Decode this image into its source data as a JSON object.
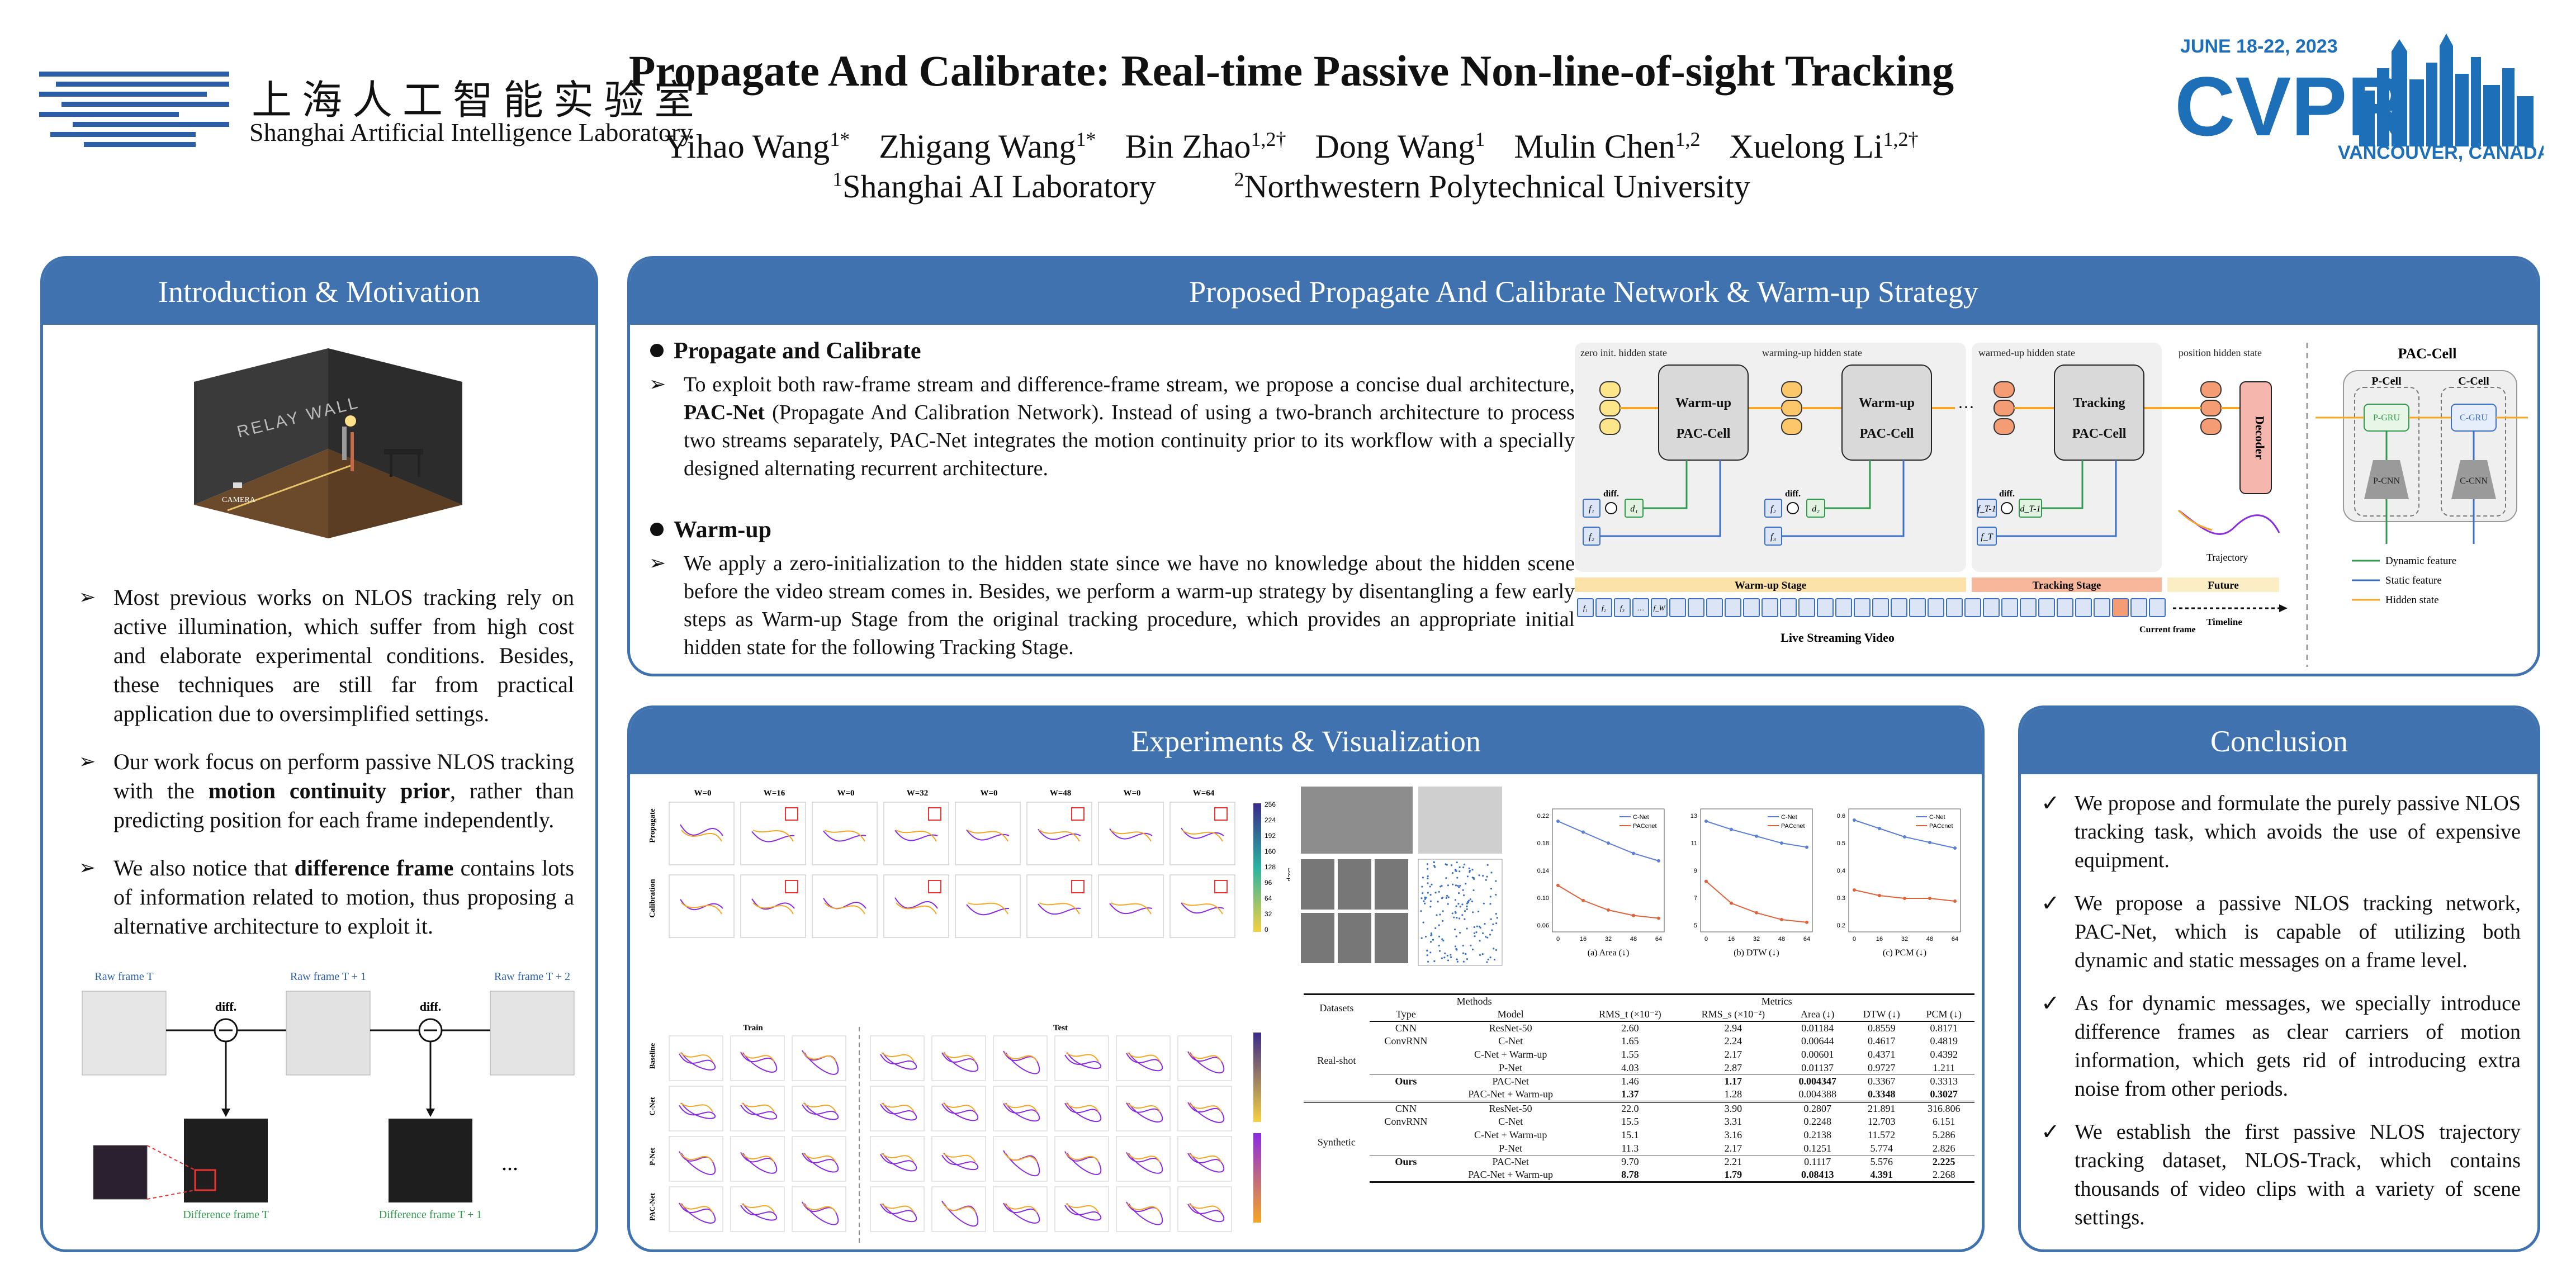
{
  "header": {
    "lab_name_cn": "上海人工智能实验室",
    "lab_name_en": "Shanghai Artificial Intelligence Laboratory",
    "title": "Propagate And Calibrate: Real-time Passive Non-line-of-sight Tracking",
    "authors": [
      {
        "name": "Yihao Wang",
        "sup": "1*"
      },
      {
        "name": "Zhigang Wang",
        "sup": "1*"
      },
      {
        "name": "Bin Zhao",
        "sup": "1,2†"
      },
      {
        "name": "Dong Wang",
        "sup": "1"
      },
      {
        "name": "Mulin Chen",
        "sup": "1,2"
      },
      {
        "name": "Xuelong Li",
        "sup": "1,2†"
      }
    ],
    "affiliations": [
      {
        "sup": "1",
        "name": "Shanghai AI Laboratory"
      },
      {
        "sup": "2",
        "name": "Northwestern Polytechnical University"
      }
    ],
    "cvpr": {
      "dates": "JUNE 18-22, 2023",
      "name": "CVPR",
      "location": "VANCOUVER, CANADA"
    }
  },
  "colors": {
    "panel_blue": "#3f72af",
    "warmup_yellow": "#f5a623",
    "tracking_orange": "#ef8b5c",
    "static_blue": "#3a6fc4",
    "dynamic_green": "#2f9a4b"
  },
  "intro": {
    "title": "Introduction & Motivation",
    "scene_wall_label": "RELAY WALL",
    "scene_camera_label": "CAMERA",
    "bullets": [
      [
        {
          "t": "Most previous works on NLOS tracking rely on active illumination, which suffer from high cost and elaborate experimental conditions. Besides, these techniques are still far from practical application due to oversimplified settings.",
          "b": false
        }
      ],
      [
        {
          "t": "Our work focus on perform passive NLOS tracking with the ",
          "b": false
        },
        {
          "t": "motion continuity prior",
          "b": true
        },
        {
          "t": ", rather than predicting position for each frame independently.",
          "b": false
        }
      ],
      [
        {
          "t": "We also notice that ",
          "b": false
        },
        {
          "t": "difference frame",
          "b": true
        },
        {
          "t": " contains lots of information related to motion, thus proposing a alternative architecture to exploit it.",
          "b": false
        }
      ]
    ],
    "diagram": {
      "raw_frames": [
        "Raw frame T",
        "Raw frame T + 1",
        "Raw frame T + 2"
      ],
      "diff_label": "diff.",
      "ellipsis": "...",
      "diff_frames": [
        "Difference frame T",
        "Difference frame T + 1"
      ]
    }
  },
  "method": {
    "title": "Proposed Propagate And Calibrate Network & Warm-up Strategy",
    "sections": [
      {
        "heading": "Propagate and Calibrate",
        "body": [
          {
            "t": "To exploit both raw-frame stream and difference-frame stream, we propose a concise dual architecture, ",
            "b": false
          },
          {
            "t": "PAC-Net",
            "b": true
          },
          {
            "t": " (Propagate And Calibration Network). Instead of using a two-branch architecture to process two streams separately, PAC-Net integrates the motion continuity prior to its workflow with a specially designed alternating recurrent architecture.",
            "b": false
          }
        ]
      },
      {
        "heading": "Warm-up",
        "body": [
          {
            "t": "We apply a zero-initialization to the hidden state since we have no knowledge about the hidden scene before the video stream comes in. Besides, we perform a warm-up strategy by disentangling a few early steps as Warm-up Stage from the original tracking procedure, which provides an appropriate initial hidden state for the following Tracking Stage.",
            "b": false
          }
        ]
      }
    ],
    "diagram": {
      "state_labels": [
        "zero init. hidden state",
        "warming-up hidden state",
        "warmed-up hidden state",
        "position hidden state"
      ],
      "cells": [
        {
          "line1": "Warm-up",
          "line2": "PAC-Cell"
        },
        {
          "line1": "Warm-up",
          "line2": "PAC-Cell"
        },
        {
          "line1": "Tracking",
          "line2": "PAC-Cell"
        }
      ],
      "decoder": "Decoder",
      "diff": "diff.",
      "trajectory": "Trajectory",
      "stages": [
        "Warm-up Stage",
        "Tracking Stage",
        "Future"
      ],
      "stream_label": "Live Streaming Video",
      "current_frame": "Current frame",
      "timeline": "Timeline",
      "stream_frames": [
        "f₁",
        "f₂",
        "f₃",
        "…",
        "f_W"
      ],
      "frame_syms": [
        "f₁",
        "f₂",
        "d₁",
        "f₂",
        "f₃",
        "d₂",
        "f_T-1",
        "f_T",
        "d_T-1"
      ],
      "ellipsis": "···"
    },
    "paccell": {
      "title": "PAC-Cell",
      "p_cell": "P-Cell",
      "c_cell": "C-Cell",
      "p_gru": "P-GRU",
      "c_gru": "C-GRU",
      "p_cnn": "P-CNN",
      "c_cnn": "C-CNN",
      "legend": [
        "Dynamic feature",
        "Static feature",
        "Hidden state"
      ]
    }
  },
  "experiments": {
    "title": "Experiments & Visualization",
    "grid1": {
      "col_labels": [
        "W=0",
        "W=16",
        "W=0",
        "W=32",
        "W=0",
        "W=48",
        "W=0",
        "W=64"
      ],
      "row_labels": [
        "Propagate",
        "Calibration"
      ],
      "colorbar_ticks": [
        "256",
        "224",
        "192",
        "160",
        "128",
        "96",
        "64",
        "32",
        "0"
      ],
      "colorbar_title": "Step"
    },
    "grid2": {
      "split_labels": [
        "Train",
        "Test"
      ],
      "row_labels": [
        "Baseline",
        "C-Net",
        "P-Net",
        "PAC-Net"
      ]
    },
    "plots": [
      {
        "caption": "(a) Area (↓)",
        "yticks": [
          "0.22",
          "0.18",
          "0.14",
          "0.10",
          "0.06"
        ],
        "cnet": [
          0.212,
          0.196,
          0.18,
          0.165,
          0.154
        ],
        "paccnet": [
          0.118,
          0.096,
          0.082,
          0.074,
          0.07
        ],
        "ymin": 0.05,
        "ymax": 0.23
      },
      {
        "caption": "(b) DTW (↓)",
        "yticks": [
          "13",
          "11",
          "9",
          "7",
          "5"
        ],
        "cnet": [
          12.6,
          12.0,
          11.5,
          11.0,
          10.7
        ],
        "paccnet": [
          8.2,
          6.6,
          5.9,
          5.4,
          5.2
        ],
        "ymin": 4.5,
        "ymax": 13.5
      },
      {
        "caption": "(c) PCM (↓)",
        "yticks": [
          "0.6",
          "0.5",
          "0.4",
          "0.3",
          "0.2"
        ],
        "cnet": [
          0.58,
          0.55,
          0.52,
          0.5,
          0.48
        ],
        "paccnet": [
          0.33,
          0.31,
          0.3,
          0.3,
          0.29
        ],
        "ymin": 0.18,
        "ymax": 0.62
      }
    ],
    "plot_xticks": [
      "0",
      "16",
      "32",
      "48",
      "64"
    ],
    "plot_legend": [
      "C-Net",
      "PACcnet"
    ],
    "table": {
      "group_headers": [
        "Datasets",
        "Methods",
        "Metrics"
      ],
      "col_headers": [
        "Type",
        "Model",
        "RMS_t (×10⁻²)",
        "RMS_s (×10⁻²)",
        "Area (↓)",
        "DTW (↓)",
        "PCM (↓)"
      ],
      "realshot_label": "Real-shot",
      "synthetic_label": "Synthetic",
      "realshot": [
        [
          "CNN",
          "ResNet-50",
          "2.60",
          "2.94",
          "0.01184",
          "0.8559",
          "0.8171"
        ],
        [
          "ConvRNN",
          "C-Net",
          "1.65",
          "2.24",
          "0.00644",
          "0.4617",
          "0.4819"
        ],
        [
          "",
          "C-Net + Warm-up",
          "1.55",
          "2.17",
          "0.00601",
          "0.4371",
          "0.4392"
        ],
        [
          "",
          "P-Net",
          "4.03",
          "2.87",
          "0.01137",
          "0.9727",
          "1.211"
        ],
        [
          "Ours",
          "PAC-Net",
          "1.46",
          "1.17",
          "0.004347",
          "0.3367",
          "0.3313"
        ],
        [
          "",
          "PAC-Net + Warm-up",
          "1.37",
          "1.28",
          "0.004388",
          "0.3348",
          "0.3027"
        ]
      ],
      "synthetic": [
        [
          "CNN",
          "ResNet-50",
          "22.0",
          "3.90",
          "0.2807",
          "21.891",
          "316.806"
        ],
        [
          "ConvRNN",
          "C-Net",
          "15.5",
          "3.31",
          "0.2248",
          "12.703",
          "6.151"
        ],
        [
          "",
          "C-Net + Warm-up",
          "15.1",
          "3.16",
          "0.2138",
          "11.572",
          "5.286"
        ],
        [
          "",
          "P-Net",
          "11.3",
          "2.17",
          "0.1251",
          "5.774",
          "2.826"
        ],
        [
          "Ours",
          "PAC-Net",
          "9.70",
          "2.21",
          "0.1117",
          "5.576",
          "2.225"
        ],
        [
          "",
          "PAC-Net + Warm-up",
          "8.78",
          "1.79",
          "0.08413",
          "4.391",
          "2.268"
        ]
      ]
    }
  },
  "conclusion": {
    "title": "Conclusion",
    "bullets": [
      "We propose and formulate the purely passive NLOS tracking task, which avoids the use of expensive equipment.",
      "We propose a passive NLOS tracking network, PAC-Net, which is capable of utilizing both dynamic and static messages on a frame level.",
      "As for dynamic messages, we specially introduce difference frames as clear carriers of motion information, which gets rid of introducing extra noise from other periods.",
      "We establish the first passive NLOS trajectory tracking dataset, NLOS-Track, which contains thousands of video clips with a variety of scene settings."
    ]
  }
}
